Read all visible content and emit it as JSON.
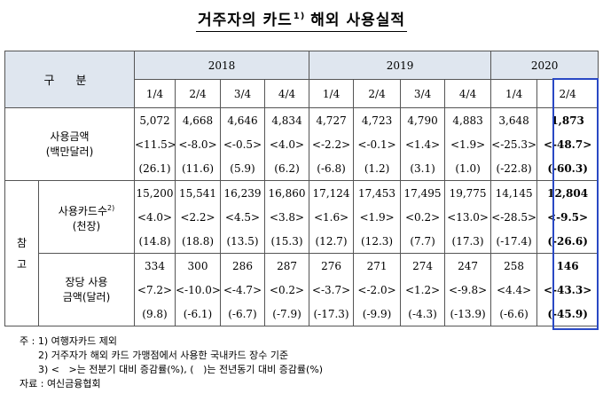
{
  "title": {
    "main": "거주자의 카드",
    "sup": "1)",
    "rest": "해외 사용실적"
  },
  "header": {
    "gubun": "구 분",
    "years": [
      "2018",
      "2019",
      "2020"
    ],
    "quarters": [
      "1/4",
      "2/4",
      "3/4",
      "4/4",
      "1/4",
      "2/4",
      "3/4",
      "4/4",
      "1/4",
      "2/4"
    ]
  },
  "reference_label": "참고",
  "sections": [
    {
      "label_line1": "사용금액",
      "label_line2": "(백만달러)",
      "label_sup": "",
      "rows": [
        [
          "5,072",
          "4,668",
          "4,646",
          "4,834",
          "4,727",
          "4,723",
          "4,790",
          "4,883",
          "3,648",
          "1,873"
        ],
        [
          "<11.5>",
          "<-8.0>",
          "<-0.5>",
          "<4.0>",
          "<-2.2>",
          "<-0.1>",
          "<1.4>",
          "<1.9>",
          "<-25.3>",
          "<-48.7>"
        ],
        [
          "(26.1)",
          "(11.6)",
          "(5.9)",
          "(6.2)",
          "(-6.8)",
          "(1.2)",
          "(3.1)",
          "(1.0)",
          "(-22.8)",
          "(-60.3)"
        ]
      ]
    },
    {
      "label_line1": "사용카드수",
      "label_line2": "(천장)",
      "label_sup": "2)",
      "rows": [
        [
          "15,200",
          "15,541",
          "16,239",
          "16,860",
          "17,124",
          "17,453",
          "17,495",
          "19,775",
          "14,145",
          "12,804"
        ],
        [
          "<4.0>",
          "<2.2>",
          "<4.5>",
          "<3.8>",
          "<1.6>",
          "<1.9>",
          "<0.2>",
          "<13.0>",
          "<-28.5>",
          "<-9.5>"
        ],
        [
          "(14.8)",
          "(18.8)",
          "(13.5)",
          "(15.3)",
          "(12.7)",
          "(12.3)",
          "(7.7)",
          "(17.3)",
          "(-17.4)",
          "(-26.6)"
        ]
      ]
    },
    {
      "label_line1": "장당 사용",
      "label_line2": "금액(달러)",
      "label_sup": "",
      "rows": [
        [
          "334",
          "300",
          "286",
          "287",
          "276",
          "271",
          "274",
          "247",
          "258",
          "146"
        ],
        [
          "<7.2>",
          "<-10.0>",
          "<-4.7>",
          "<0.2>",
          "<-3.7>",
          "<-2.0>",
          "<1.2>",
          "<-9.8>",
          "<4.4>",
          "<-43.3>"
        ],
        [
          "(9.8)",
          "(-6.1)",
          "(-6.7)",
          "(-7.9)",
          "(-17.3)",
          "(-9.9)",
          "(-4.3)",
          "(-13.9)",
          "(-6.6)",
          "(-45.9)"
        ]
      ]
    }
  ],
  "notes": [
    "주 : 1) 여행자카드 제외",
    "      2) 거주자가 해외 카드 가맹점에서 사용한 국내카드 장수 기준",
    "      3) <   >는 전분기 대비 증감률(%), (   )는 전년동기 대비 증감률(%)",
    "자료 : 여신금융협회"
  ],
  "colors": {
    "header_bg": "#dfe6ef",
    "highlight_border": "#2a49c4"
  }
}
